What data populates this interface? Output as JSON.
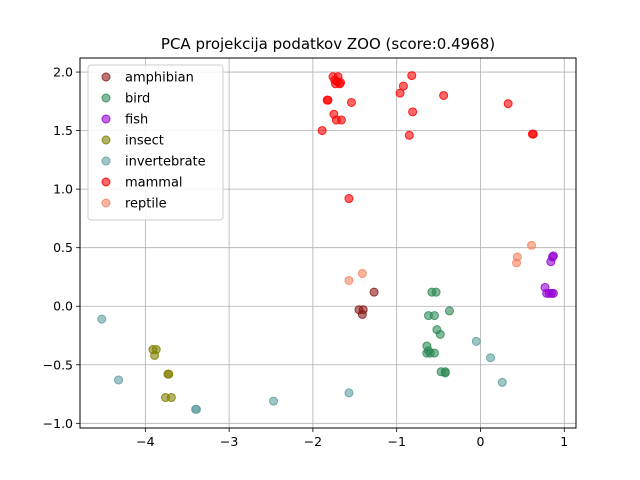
{
  "chart_data": {
    "type": "scatter",
    "title": "PCA projekcija podatkov ZOO (score:0.4968)",
    "xlabel": "",
    "ylabel": "",
    "xlim": [
      -4.78,
      1.14
    ],
    "ylim": [
      -1.04,
      2.12
    ],
    "xticks": [
      -4,
      -3,
      -2,
      -1,
      0,
      1
    ],
    "yticks": [
      -1.0,
      -0.5,
      0.0,
      0.5,
      1.0,
      1.5,
      2.0
    ],
    "xtick_labels": [
      "−4",
      "−3",
      "−2",
      "−1",
      "0",
      "1"
    ],
    "ytick_labels": [
      "−1.0",
      "−0.5",
      "0.0",
      "0.5",
      "1.0",
      "1.5",
      "2.0"
    ],
    "grid": true,
    "legend_position": "upper-left",
    "series": [
      {
        "name": "amphibian",
        "color": "#8b1a1a",
        "points": [
          [
            -1.45,
            -0.03
          ],
          [
            -1.4,
            -0.03
          ],
          [
            -1.41,
            -0.07
          ],
          [
            -1.27,
            0.12
          ]
        ]
      },
      {
        "name": "bird",
        "color": "#2e8b57",
        "points": [
          [
            -0.58,
            0.12
          ],
          [
            -0.53,
            0.12
          ],
          [
            -0.37,
            -0.04
          ],
          [
            -0.62,
            -0.08
          ],
          [
            -0.55,
            -0.08
          ],
          [
            -0.52,
            -0.2
          ],
          [
            -0.48,
            -0.24
          ],
          [
            -0.64,
            -0.34
          ],
          [
            -0.62,
            -0.38
          ],
          [
            -0.64,
            -0.4
          ],
          [
            -0.6,
            -0.4
          ],
          [
            -0.55,
            -0.4
          ],
          [
            -0.47,
            -0.56
          ],
          [
            -0.42,
            -0.56
          ],
          [
            -0.42,
            -0.57
          ]
        ]
      },
      {
        "name": "fish",
        "color": "#9400d3",
        "points": [
          [
            0.77,
            0.16
          ],
          [
            0.79,
            0.11
          ],
          [
            0.82,
            0.11
          ],
          [
            0.85,
            0.11
          ],
          [
            0.87,
            0.11
          ],
          [
            0.84,
            0.38
          ],
          [
            0.86,
            0.42
          ],
          [
            0.87,
            0.43
          ]
        ]
      },
      {
        "name": "insect",
        "color": "#808000",
        "points": [
          [
            -3.91,
            -0.37
          ],
          [
            -3.87,
            -0.37
          ],
          [
            -3.89,
            -0.42
          ],
          [
            -3.73,
            -0.58
          ],
          [
            -3.72,
            -0.58
          ],
          [
            -3.76,
            -0.78
          ],
          [
            -3.69,
            -0.78
          ]
        ]
      },
      {
        "name": "invertebrate",
        "color": "#5f9ea0",
        "points": [
          [
            -4.52,
            -0.11
          ],
          [
            -4.32,
            -0.63
          ],
          [
            -3.4,
            -0.88
          ],
          [
            -2.47,
            -0.81
          ],
          [
            -1.57,
            -0.74
          ],
          [
            -0.05,
            -0.3
          ],
          [
            0.12,
            -0.44
          ],
          [
            0.26,
            -0.65
          ],
          [
            -3.39,
            -0.88
          ]
        ]
      },
      {
        "name": "mammal",
        "color": "#ff0000",
        "points": [
          [
            -1.76,
            1.96
          ],
          [
            -1.7,
            1.96
          ],
          [
            -1.74,
            1.93
          ],
          [
            -1.71,
            1.92
          ],
          [
            -1.67,
            1.91
          ],
          [
            -1.73,
            1.9
          ],
          [
            -1.68,
            1.9
          ],
          [
            -0.82,
            1.97
          ],
          [
            -0.92,
            1.88
          ],
          [
            -0.96,
            1.82
          ],
          [
            -1.83,
            1.76
          ],
          [
            -1.82,
            1.76
          ],
          [
            -1.54,
            1.74
          ],
          [
            -0.44,
            1.8
          ],
          [
            0.33,
            1.73
          ],
          [
            -1.75,
            1.64
          ],
          [
            -0.81,
            1.66
          ],
          [
            -1.72,
            1.59
          ],
          [
            -1.66,
            1.59
          ],
          [
            -1.89,
            1.5
          ],
          [
            -0.85,
            1.46
          ],
          [
            0.62,
            1.47
          ],
          [
            0.63,
            1.47
          ],
          [
            -1.57,
            0.92
          ]
        ]
      },
      {
        "name": "reptile",
        "color": "#f4845f",
        "points": [
          [
            -1.57,
            0.22
          ],
          [
            -1.41,
            0.28
          ],
          [
            0.43,
            0.37
          ],
          [
            0.44,
            0.42
          ],
          [
            0.61,
            0.52
          ]
        ]
      }
    ]
  }
}
